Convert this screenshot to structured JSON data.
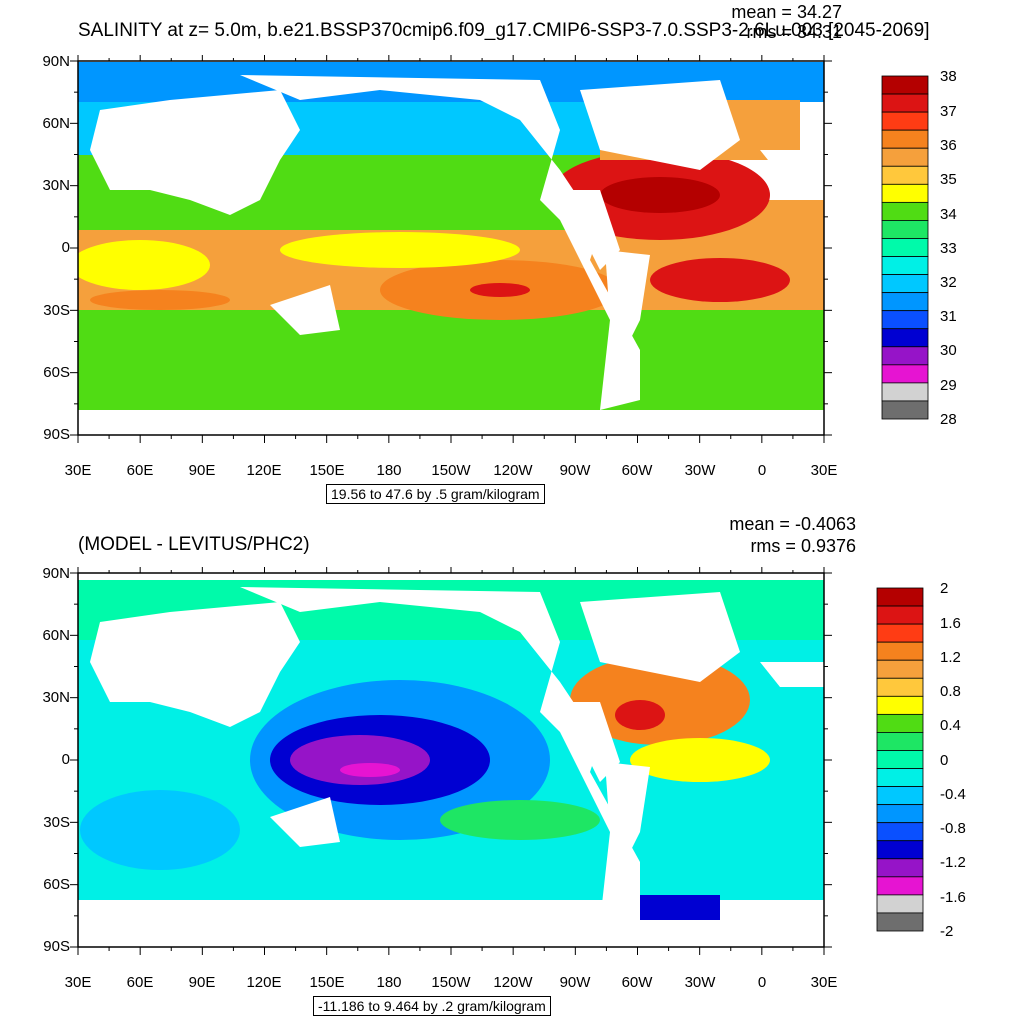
{
  "panel_top": {
    "title": "SALINITY at z=   5.0m, b.e21.BSSP370cmip6.f09_g17.CMIP6-SSP3-7.0.SSP3-2.6Lu.003 [2045-2069]",
    "mean_text": "mean = 34.27",
    "rms_text": "rms = 34.31",
    "info_text": "19.56 to 47.6 by .5 gram/kilogram",
    "lat_labels": [
      "90N",
      "60N",
      "30N",
      "0",
      "30S",
      "60S",
      "90S"
    ],
    "lon_labels": [
      "30E",
      "60E",
      "90E",
      "120E",
      "150E",
      "180",
      "150W",
      "120W",
      "90W",
      "60W",
      "30W",
      "0",
      "30E"
    ],
    "colorbar_labels": [
      "38",
      "37",
      "36",
      "35",
      "34",
      "33",
      "32",
      "31",
      "30",
      "29",
      "28"
    ],
    "colorbar_colors": [
      "#b40000",
      "#dc1414",
      "#ff3c14",
      "#f5821e",
      "#f5a03c",
      "#ffc83c",
      "#ffff00",
      "#50dc14",
      "#1ee664",
      "#00faaa",
      "#00f0e6",
      "#00c8ff",
      "#0096ff",
      "#0a50ff",
      "#0000d2",
      "#9614c8",
      "#e614d2",
      "#d2d2d2",
      "#6e6e6e"
    ]
  },
  "panel_bottom": {
    "title": "(MODEL - LEVITUS/PHC2)",
    "mean_text": "mean = -0.4063",
    "rms_text": "rms = 0.9376",
    "info_text": "-11.186 to 9.464 by .2 gram/kilogram",
    "lat_labels": [
      "90N",
      "60N",
      "30N",
      "0",
      "30S",
      "60S",
      "90S"
    ],
    "lon_labels": [
      "30E",
      "60E",
      "90E",
      "120E",
      "150E",
      "180",
      "150W",
      "120W",
      "90W",
      "60W",
      "30W",
      "0",
      "30E"
    ],
    "colorbar_labels": [
      "2",
      "1.6",
      "1.2",
      "0.8",
      "0.4",
      "0",
      "-0.4",
      "-0.8",
      "-1.2",
      "-1.6",
      "-2"
    ],
    "colorbar_colors": [
      "#b40000",
      "#dc1414",
      "#ff3c14",
      "#f5821e",
      "#f5a03c",
      "#ffc83c",
      "#ffff00",
      "#50dc14",
      "#1ee664",
      "#00faaa",
      "#00f0e6",
      "#00c8ff",
      "#0096ff",
      "#0a50ff",
      "#0000d2",
      "#9614c8",
      "#e614d2",
      "#d2d2d2",
      "#6e6e6e"
    ]
  }
}
